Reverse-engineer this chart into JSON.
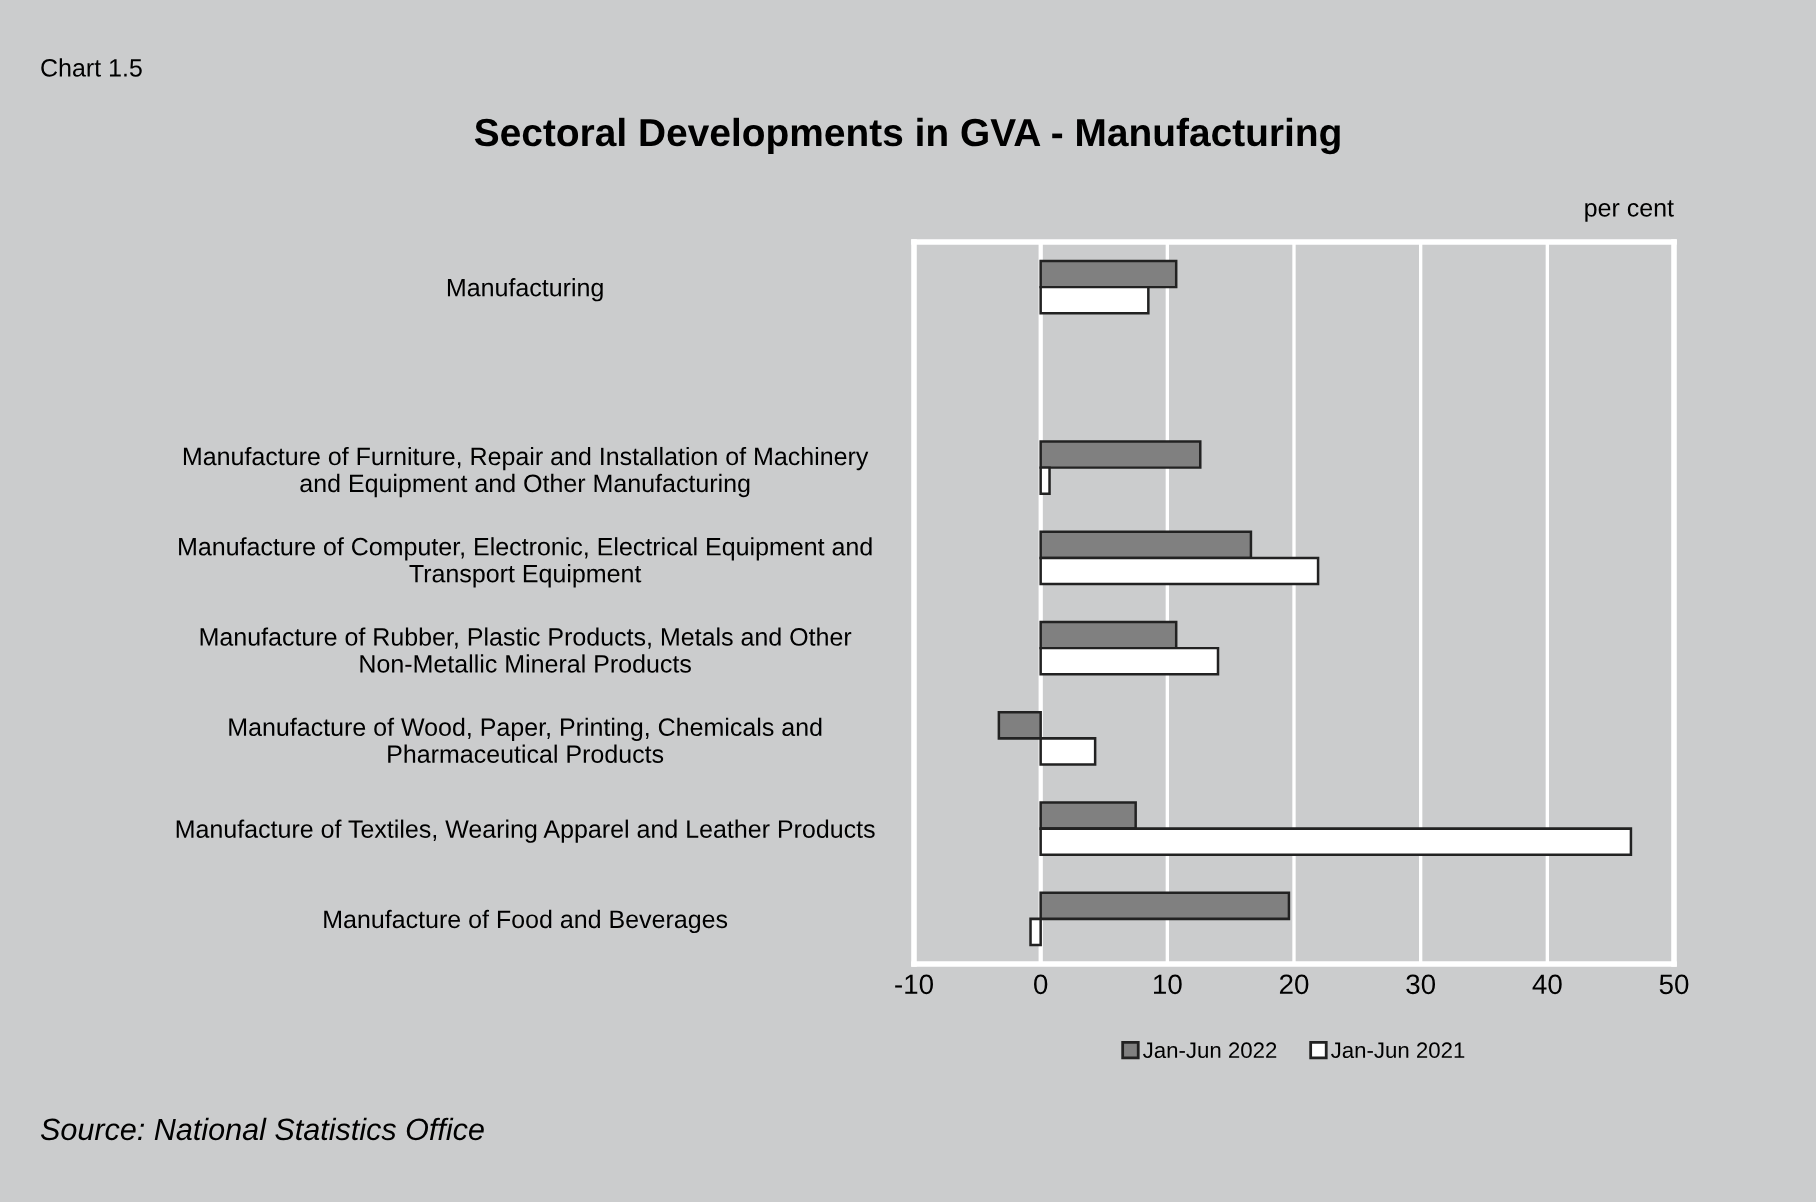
{
  "chart_data": {
    "type": "bar",
    "orientation": "horizontal",
    "title": "Sectoral Developments in GVA - Manufacturing",
    "categories": [
      "Manufacturing",
      null,
      "Manufacture of Furniture, Repair and Installation of Machinery\nand Equipment and Other Manufacturing",
      "Manufacture of Computer, Electronic, Electrical Equipment and\nTransport Equipment",
      "Manufacture of Rubber, Plastic Products, Metals and Other\nNon-Metallic Mineral Products",
      "Manufacture of Wood, Paper, Printing, Chemicals and\nPharmaceutical Products",
      "Manufacture of Textiles, Wearing Apparel and Leather Products",
      "Manufacture of Food and Beverages"
    ],
    "series": [
      {
        "name": "Jan-Jun 2022",
        "color": "#808080",
        "values": [
          10.7,
          null,
          12.6,
          16.6,
          10.7,
          -3.3,
          7.5,
          19.6
        ]
      },
      {
        "name": "Jan-Jun 2021",
        "color": "#ffffff",
        "values": [
          8.5,
          null,
          0.7,
          21.9,
          14.0,
          4.3,
          46.6,
          -0.8
        ]
      }
    ],
    "xlim": [
      -10,
      50
    ],
    "xticks": [
      -10,
      0,
      10,
      20,
      30,
      40,
      50
    ],
    "grid": "x",
    "legend": "bottom",
    "annotations": [
      "Chart 1.5",
      "per cent",
      "Source: National Statistics Office"
    ]
  }
}
